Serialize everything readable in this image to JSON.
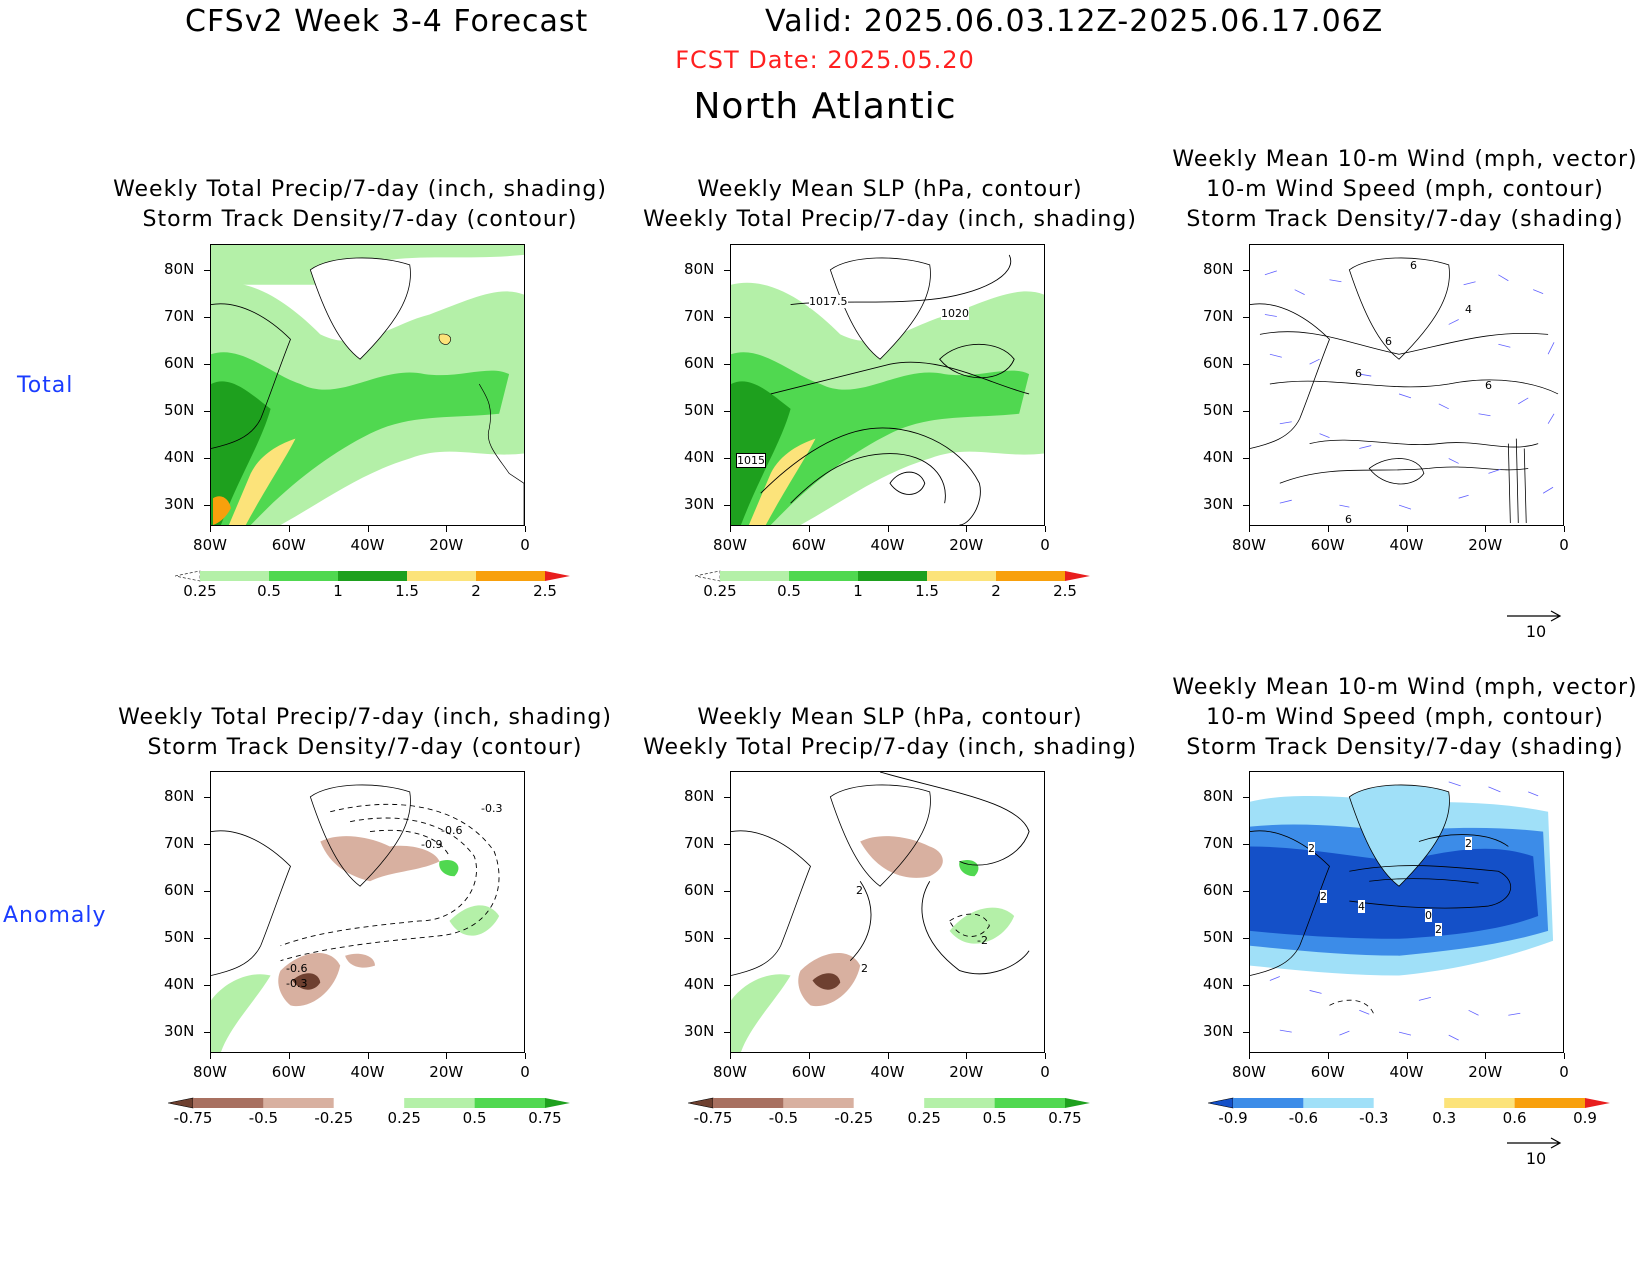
{
  "header": {
    "title": "CFSv2 Week 3-4 Forecast",
    "valid": "Valid: 2025.06.03.12Z-2025.06.17.06Z",
    "fcst_date": "FCST Date: 2025.05.20",
    "region": "North Atlantic"
  },
  "rows": {
    "total_label": "Total",
    "anomaly_label": "Anomaly"
  },
  "panels": {
    "precip": {
      "line1": "Weekly Total Precip/7-day (inch, shading)",
      "line2": "Storm Track Density/7-day (contour)"
    },
    "slp": {
      "line1": "Weekly Mean SLP (hPa, contour)",
      "line2": "Weekly Total Precip/7-day (inch, shading)"
    },
    "wind": {
      "line1": "Weekly Mean 10-m Wind (mph, vector)",
      "line2": "10-m Wind Speed (mph, contour)",
      "line3": "Storm Track Density/7-day (shading)"
    }
  },
  "axes": {
    "lat_ticks": [
      "80N",
      "70N",
      "60N",
      "50N",
      "40N",
      "30N"
    ],
    "lon_ticks": [
      "80W",
      "60W",
      "40W",
      "20W",
      "0"
    ]
  },
  "colorbars": {
    "precip_total": [
      "0.25",
      "0.5",
      "1",
      "1.5",
      "2",
      "2.5"
    ],
    "precip_anom": [
      "-0.75",
      "-0.5",
      "-0.25",
      "0.25",
      "0.5",
      "0.75"
    ],
    "track_anom": [
      "-0.9",
      "-0.6",
      "-0.3",
      "0.3",
      "0.6",
      "0.9"
    ],
    "colors_total": [
      "#ffffff",
      "#b4f0a8",
      "#50d850",
      "#1ea01e",
      "#fce37a",
      "#f8a00c",
      "#e81e1e"
    ],
    "colors_precip_anom": [
      "#6e4030",
      "#a87060",
      "#d8b0a0",
      "#ffffff",
      "#b4f0a8",
      "#50d850",
      "#1ea01e"
    ],
    "colors_track_anom": [
      "#1450c8",
      "#3c8ce8",
      "#a0e0f8",
      "#ffffff",
      "#fce37a",
      "#f8a00c",
      "#e81e1e"
    ]
  },
  "contour_labels": {
    "slp_total": [
      "1017.5",
      "1020",
      "1015"
    ],
    "wind_total": [
      "6",
      "4",
      "6",
      "6",
      "6",
      "6"
    ],
    "precip_anom_track": [
      "-0.3",
      "-0.6",
      "-0.9",
      "-0.6",
      "-0.3"
    ],
    "slp_anom": [
      "2",
      "-2",
      "2"
    ],
    "wind_anom": [
      "2",
      "2",
      "2",
      "4",
      "0",
      "2"
    ]
  },
  "vector_ref": {
    "value": "10"
  }
}
